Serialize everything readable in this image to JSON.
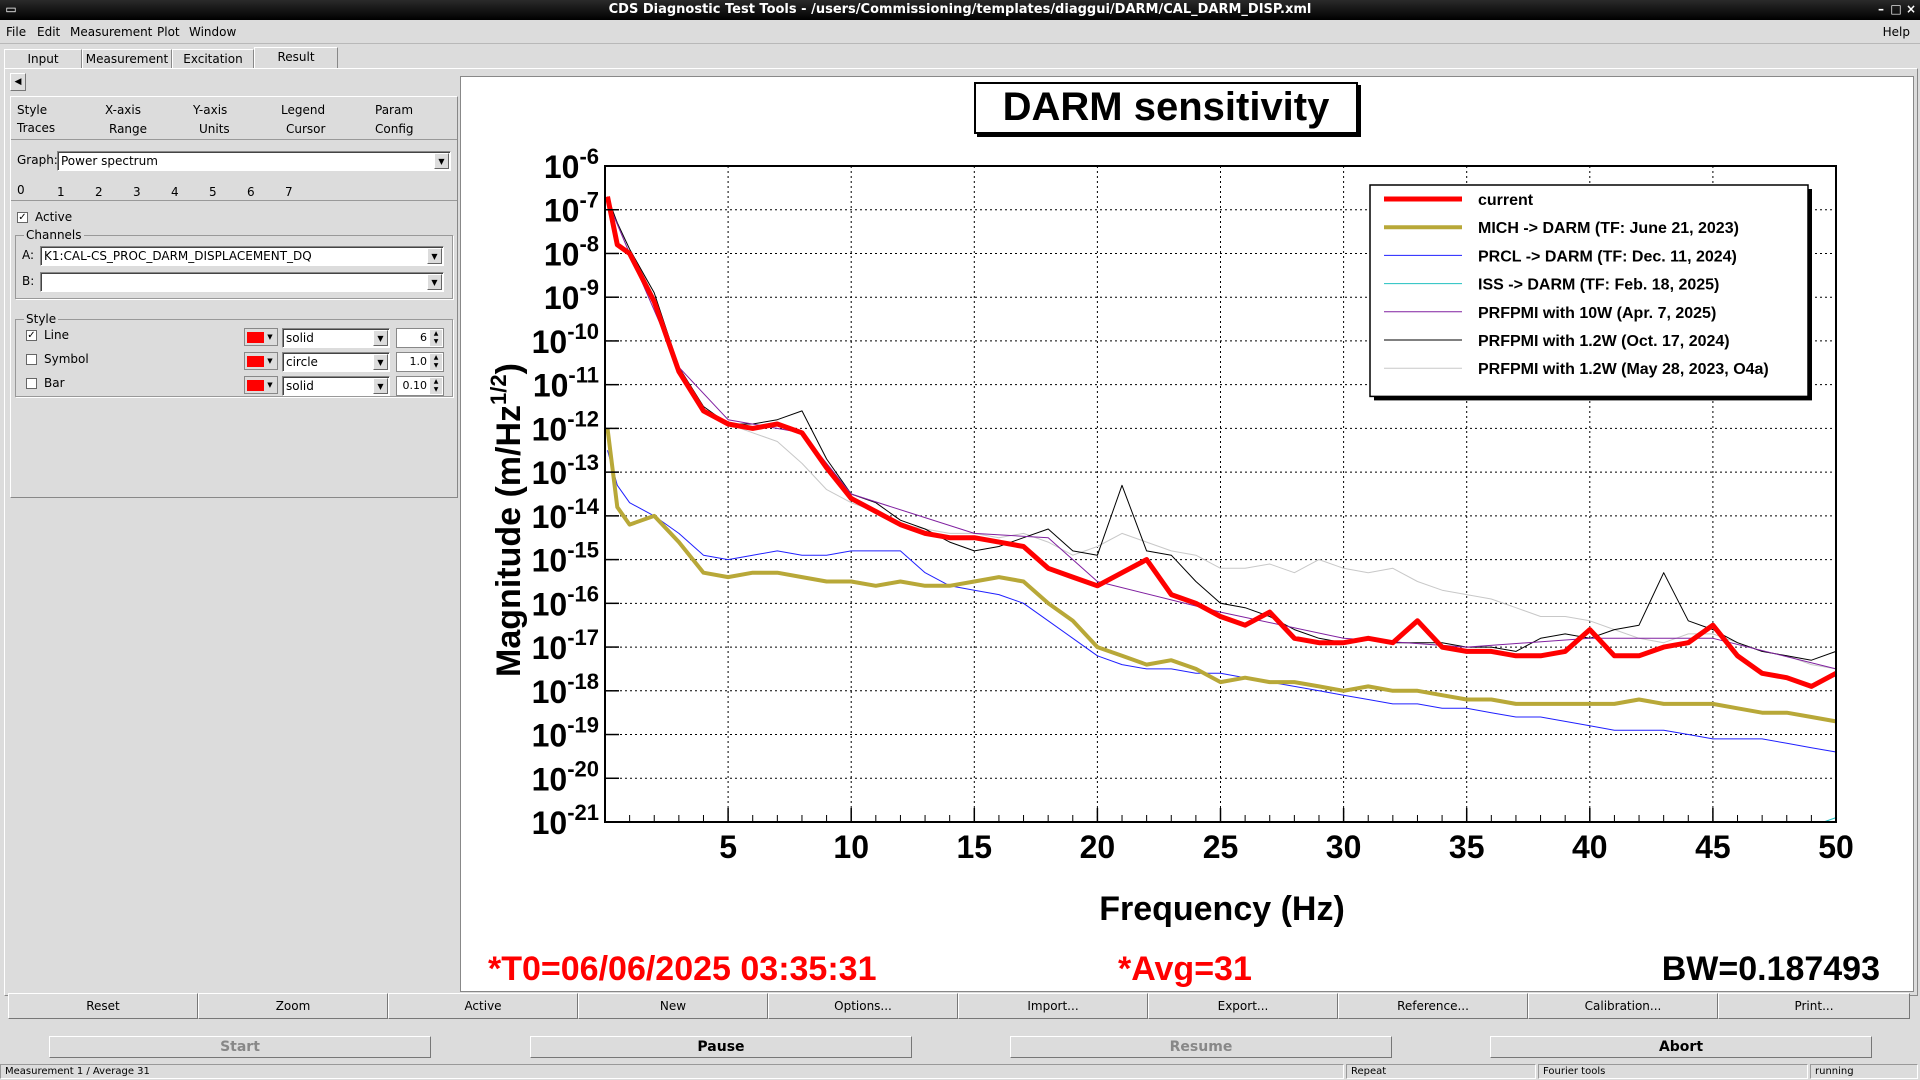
{
  "window": {
    "title": "CDS Diagnostic Test Tools - /users/Commissioning/templates/diaggui/DARM/CAL_DARM_DISP.xml"
  },
  "menu": {
    "file": "File",
    "edit": "Edit",
    "measurement": "Measurement",
    "plot": "Plot",
    "window": "Window",
    "help": "Help"
  },
  "tabs": [
    "Input",
    "Measurement",
    "Excitation",
    "Result"
  ],
  "plot_tabs": {
    "row1": [
      "Style",
      "X-axis",
      "Y-axis",
      "Legend",
      "Param"
    ],
    "row2": [
      "Traces",
      "Range",
      "Units",
      "Cursor",
      "Config"
    ]
  },
  "graph": {
    "label": "Graph:",
    "value": "Power spectrum"
  },
  "trace_tabs": [
    "0",
    "1",
    "2",
    "3",
    "4",
    "5",
    "6",
    "7"
  ],
  "active": {
    "label": "Active",
    "checked": true
  },
  "channels": {
    "group_label": "Channels",
    "a_label": "A:",
    "a_value": "K1:CAL-CS_PROC_DARM_DISPLACEMENT_DQ",
    "b_label": "B:",
    "b_value": ""
  },
  "style": {
    "group_label": "Style",
    "line": {
      "label": "Line",
      "checked": true,
      "color": "#ff0000",
      "type": "solid",
      "value": "6"
    },
    "symbol": {
      "label": "Symbol",
      "checked": false,
      "color": "#ff0000",
      "type": "circle",
      "value": "1.0"
    },
    "bar": {
      "label": "Bar",
      "checked": false,
      "color": "#ff0000",
      "type": "solid",
      "value": "0.10"
    }
  },
  "plot_footer": {
    "t0": "*T0=06/06/2025 03:35:31",
    "avg": "*Avg=31",
    "bw": "BW=0.187493"
  },
  "buttons": [
    "Reset",
    "Zoom",
    "Active",
    "New",
    "Options...",
    "Import...",
    "Export...",
    "Reference...",
    "Calibration...",
    "Print..."
  ],
  "controls": {
    "start": "Start",
    "pause": "Pause",
    "resume": "Resume",
    "abort": "Abort"
  },
  "status": {
    "left": "Measurement 1 / Average 31",
    "repeat": "Repeat",
    "tools": "Fourier tools",
    "state": "running"
  },
  "chart_data": {
    "type": "line",
    "title": "DARM sensitivity",
    "xlabel": "Frequency (Hz)",
    "ylabel": "Magnitude (m/Hz^1/2)",
    "xlim": [
      0,
      50
    ],
    "ylim_exp": [
      -21,
      -6
    ],
    "y_scale": "log",
    "grid": true,
    "legend_position": "top-right",
    "x_ticks": [
      5,
      10,
      15,
      20,
      25,
      30,
      35,
      40,
      45,
      50
    ],
    "y_tick_exponents": [
      -6,
      -7,
      -8,
      -9,
      -10,
      -11,
      -12,
      -13,
      -14,
      -15,
      -16,
      -17,
      -18,
      -19,
      -20,
      -21
    ],
    "series": [
      {
        "name": "current",
        "color": "#ff0000",
        "width": 5,
        "log10_values": [
          [
            0.1,
            -6.7
          ],
          [
            0.5,
            -7.8
          ],
          [
            1,
            -8
          ],
          [
            2,
            -9.1
          ],
          [
            3,
            -10.7
          ],
          [
            4,
            -11.6
          ],
          [
            5,
            -11.9
          ],
          [
            6,
            -12
          ],
          [
            7,
            -11.9
          ],
          [
            8,
            -12.1
          ],
          [
            9,
            -12.9
          ],
          [
            10,
            -13.6
          ],
          [
            11,
            -13.9
          ],
          [
            12,
            -14.2
          ],
          [
            13,
            -14.4
          ],
          [
            14,
            -14.5
          ],
          [
            15,
            -14.5
          ],
          [
            16,
            -14.6
          ],
          [
            17,
            -14.7
          ],
          [
            18,
            -15.2
          ],
          [
            19,
            -15.4
          ],
          [
            20,
            -15.6
          ],
          [
            21,
            -15.3
          ],
          [
            22,
            -15.0
          ],
          [
            23,
            -15.8
          ],
          [
            24,
            -16.0
          ],
          [
            25,
            -16.3
          ],
          [
            26,
            -16.5
          ],
          [
            27,
            -16.2
          ],
          [
            28,
            -16.8
          ],
          [
            29,
            -16.9
          ],
          [
            30,
            -16.9
          ],
          [
            31,
            -16.8
          ],
          [
            32,
            -16.9
          ],
          [
            33,
            -16.4
          ],
          [
            34,
            -17.0
          ],
          [
            35,
            -17.1
          ],
          [
            36,
            -17.1
          ],
          [
            37,
            -17.2
          ],
          [
            38,
            -17.2
          ],
          [
            39,
            -17.1
          ],
          [
            40,
            -16.6
          ],
          [
            41,
            -17.2
          ],
          [
            42,
            -17.2
          ],
          [
            43,
            -17.0
          ],
          [
            44,
            -16.9
          ],
          [
            45,
            -16.5
          ],
          [
            46,
            -17.2
          ],
          [
            47,
            -17.6
          ],
          [
            48,
            -17.7
          ],
          [
            49,
            -17.9
          ],
          [
            50,
            -17.6
          ]
        ]
      },
      {
        "name": "MICH -> DARM (TF: June 21, 2023)",
        "color": "#b8a838",
        "width": 4,
        "log10_values": [
          [
            0.1,
            -12
          ],
          [
            0.5,
            -13.8
          ],
          [
            1,
            -14.2
          ],
          [
            2,
            -14.0
          ],
          [
            3,
            -14.6
          ],
          [
            4,
            -15.3
          ],
          [
            5,
            -15.4
          ],
          [
            6,
            -15.3
          ],
          [
            7,
            -15.3
          ],
          [
            8,
            -15.4
          ],
          [
            9,
            -15.5
          ],
          [
            10,
            -15.5
          ],
          [
            11,
            -15.6
          ],
          [
            12,
            -15.5
          ],
          [
            13,
            -15.6
          ],
          [
            14,
            -15.6
          ],
          [
            15,
            -15.5
          ],
          [
            16,
            -15.4
          ],
          [
            17,
            -15.5
          ],
          [
            18,
            -16.0
          ],
          [
            19,
            -16.4
          ],
          [
            20,
            -17.0
          ],
          [
            21,
            -17.2
          ],
          [
            22,
            -17.4
          ],
          [
            23,
            -17.3
          ],
          [
            24,
            -17.5
          ],
          [
            25,
            -17.8
          ],
          [
            26,
            -17.7
          ],
          [
            27,
            -17.8
          ],
          [
            28,
            -17.8
          ],
          [
            29,
            -17.9
          ],
          [
            30,
            -18.0
          ],
          [
            31,
            -17.9
          ],
          [
            32,
            -18.0
          ],
          [
            33,
            -18.0
          ],
          [
            34,
            -18.1
          ],
          [
            35,
            -18.2
          ],
          [
            36,
            -18.2
          ],
          [
            37,
            -18.3
          ],
          [
            38,
            -18.3
          ],
          [
            39,
            -18.3
          ],
          [
            40,
            -18.3
          ],
          [
            41,
            -18.3
          ],
          [
            42,
            -18.2
          ],
          [
            43,
            -18.3
          ],
          [
            44,
            -18.3
          ],
          [
            45,
            -18.3
          ],
          [
            46,
            -18.4
          ],
          [
            47,
            -18.5
          ],
          [
            48,
            -18.5
          ],
          [
            49,
            -18.6
          ],
          [
            50,
            -18.7
          ]
        ]
      },
      {
        "name": "PRCL -> DARM (TF: Dec. 11, 2024)",
        "color": "#2020ff",
        "width": 1,
        "log10_values": [
          [
            0.1,
            -12.5
          ],
          [
            0.5,
            -13.3
          ],
          [
            1,
            -13.7
          ],
          [
            2,
            -14.0
          ],
          [
            3,
            -14.4
          ],
          [
            4,
            -14.9
          ],
          [
            5,
            -15.0
          ],
          [
            6,
            -14.9
          ],
          [
            7,
            -14.8
          ],
          [
            8,
            -14.9
          ],
          [
            9,
            -14.9
          ],
          [
            10,
            -14.8
          ],
          [
            11,
            -14.8
          ],
          [
            12,
            -14.8
          ],
          [
            13,
            -15.3
          ],
          [
            14,
            -15.6
          ],
          [
            15,
            -15.7
          ],
          [
            16,
            -15.8
          ],
          [
            17,
            -16.0
          ],
          [
            18,
            -16.4
          ],
          [
            19,
            -16.8
          ],
          [
            20,
            -17.2
          ],
          [
            21,
            -17.4
          ],
          [
            22,
            -17.5
          ],
          [
            23,
            -17.5
          ],
          [
            24,
            -17.6
          ],
          [
            25,
            -17.6
          ],
          [
            26,
            -17.7
          ],
          [
            27,
            -17.8
          ],
          [
            28,
            -17.9
          ],
          [
            29,
            -18.0
          ],
          [
            30,
            -18.1
          ],
          [
            31,
            -18.2
          ],
          [
            32,
            -18.3
          ],
          [
            33,
            -18.3
          ],
          [
            34,
            -18.4
          ],
          [
            35,
            -18.4
          ],
          [
            36,
            -18.5
          ],
          [
            37,
            -18.6
          ],
          [
            38,
            -18.6
          ],
          [
            39,
            -18.7
          ],
          [
            40,
            -18.8
          ],
          [
            41,
            -18.9
          ],
          [
            42,
            -18.9
          ],
          [
            43,
            -18.9
          ],
          [
            44,
            -19.0
          ],
          [
            45,
            -19.1
          ],
          [
            46,
            -19.1
          ],
          [
            47,
            -19.1
          ],
          [
            48,
            -19.2
          ],
          [
            49,
            -19.3
          ],
          [
            50,
            -19.4
          ]
        ]
      },
      {
        "name": "ISS -> DARM (TF: Feb. 18, 2025)",
        "color": "#20c0c0",
        "width": 1,
        "log10_values": [
          [
            49.5,
            -21
          ],
          [
            50,
            -20.9
          ]
        ]
      },
      {
        "name": "PRFPMI with 10W  (Apr. 7, 2025)",
        "color": "#8020a0",
        "width": 1,
        "log10_values": [
          [
            0.1,
            -6.8
          ],
          [
            1,
            -8.0
          ],
          [
            3,
            -10.6
          ],
          [
            5,
            -11.8
          ],
          [
            8,
            -12.1
          ],
          [
            10,
            -13.5
          ],
          [
            15,
            -14.4
          ],
          [
            18,
            -14.5
          ],
          [
            20,
            -15.5
          ],
          [
            25,
            -16.2
          ],
          [
            30,
            -16.8
          ],
          [
            35,
            -17.0
          ],
          [
            40,
            -16.8
          ],
          [
            45,
            -16.8
          ],
          [
            50,
            -17.5
          ]
        ]
      },
      {
        "name": "PRFPMI with 1.2W  (Oct. 17, 2024)",
        "color": "#000000",
        "width": 1,
        "log10_values": [
          [
            0.1,
            -6.7
          ],
          [
            0.5,
            -7.3
          ],
          [
            1,
            -7.9
          ],
          [
            2,
            -8.9
          ],
          [
            3,
            -10.6
          ],
          [
            4,
            -11.5
          ],
          [
            5,
            -11.9
          ],
          [
            6,
            -11.9
          ],
          [
            7,
            -11.8
          ],
          [
            8,
            -11.6
          ],
          [
            9,
            -12.7
          ],
          [
            10,
            -13.5
          ],
          [
            11,
            -13.7
          ],
          [
            12,
            -14.1
          ],
          [
            13,
            -14.3
          ],
          [
            14,
            -14.6
          ],
          [
            15,
            -14.8
          ],
          [
            16,
            -14.7
          ],
          [
            17,
            -14.5
          ],
          [
            18,
            -14.3
          ],
          [
            19,
            -14.8
          ],
          [
            20,
            -14.9
          ],
          [
            21,
            -13.3
          ],
          [
            22,
            -14.8
          ],
          [
            23,
            -14.9
          ],
          [
            24,
            -15.5
          ],
          [
            25,
            -16.0
          ],
          [
            26,
            -16.1
          ],
          [
            27,
            -16.3
          ],
          [
            28,
            -16.6
          ],
          [
            29,
            -16.8
          ],
          [
            30,
            -16.9
          ],
          [
            31,
            -16.8
          ],
          [
            32,
            -16.9
          ],
          [
            33,
            -16.9
          ],
          [
            34,
            -16.9
          ],
          [
            35,
            -17.0
          ],
          [
            36,
            -17.0
          ],
          [
            37,
            -17.1
          ],
          [
            38,
            -16.8
          ],
          [
            39,
            -16.7
          ],
          [
            40,
            -16.8
          ],
          [
            41,
            -16.6
          ],
          [
            42,
            -16.5
          ],
          [
            43,
            -15.3
          ],
          [
            44,
            -16.4
          ],
          [
            45,
            -16.6
          ],
          [
            46,
            -16.9
          ],
          [
            47,
            -17.1
          ],
          [
            48,
            -17.2
          ],
          [
            49,
            -17.3
          ],
          [
            50,
            -17.1
          ]
        ]
      },
      {
        "name": "PRFPMI with 1.2W  (May 28, 2023, O4a)",
        "color": "#c8c8c8",
        "width": 1,
        "log10_values": [
          [
            0.1,
            -6.8
          ],
          [
            1,
            -7.9
          ],
          [
            2,
            -9.0
          ],
          [
            3,
            -10.6
          ],
          [
            4,
            -11.6
          ],
          [
            5,
            -11.9
          ],
          [
            6,
            -12.1
          ],
          [
            7,
            -12.3
          ],
          [
            8,
            -12.8
          ],
          [
            9,
            -13.4
          ],
          [
            10,
            -13.7
          ],
          [
            11,
            -13.9
          ],
          [
            12,
            -14.2
          ],
          [
            13,
            -14.3
          ],
          [
            14,
            -14.4
          ],
          [
            15,
            -14.4
          ],
          [
            16,
            -14.5
          ],
          [
            17,
            -14.4
          ],
          [
            18,
            -14.6
          ],
          [
            19,
            -14.9
          ],
          [
            20,
            -14.7
          ],
          [
            21,
            -14.4
          ],
          [
            22,
            -14.6
          ],
          [
            23,
            -14.8
          ],
          [
            24,
            -14.9
          ],
          [
            25,
            -15.2
          ],
          [
            26,
            -15.2
          ],
          [
            27,
            -15.1
          ],
          [
            28,
            -15.3
          ],
          [
            29,
            -15.0
          ],
          [
            30,
            -15.2
          ],
          [
            31,
            -15.3
          ],
          [
            32,
            -15.2
          ],
          [
            33,
            -15.5
          ],
          [
            34,
            -15.7
          ],
          [
            35,
            -15.8
          ],
          [
            36,
            -15.9
          ],
          [
            37,
            -16.1
          ],
          [
            38,
            -16.3
          ],
          [
            39,
            -16.3
          ],
          [
            40,
            -16.4
          ],
          [
            41,
            -16.6
          ],
          [
            42,
            -16.8
          ],
          [
            43,
            -16.9
          ],
          [
            44,
            -16.7
          ],
          [
            45,
            -16.7
          ],
          [
            46,
            -16.9
          ],
          [
            47,
            -17.1
          ],
          [
            48,
            -17.2
          ],
          [
            49,
            -17.4
          ],
          [
            50,
            -17.5
          ]
        ]
      }
    ]
  }
}
